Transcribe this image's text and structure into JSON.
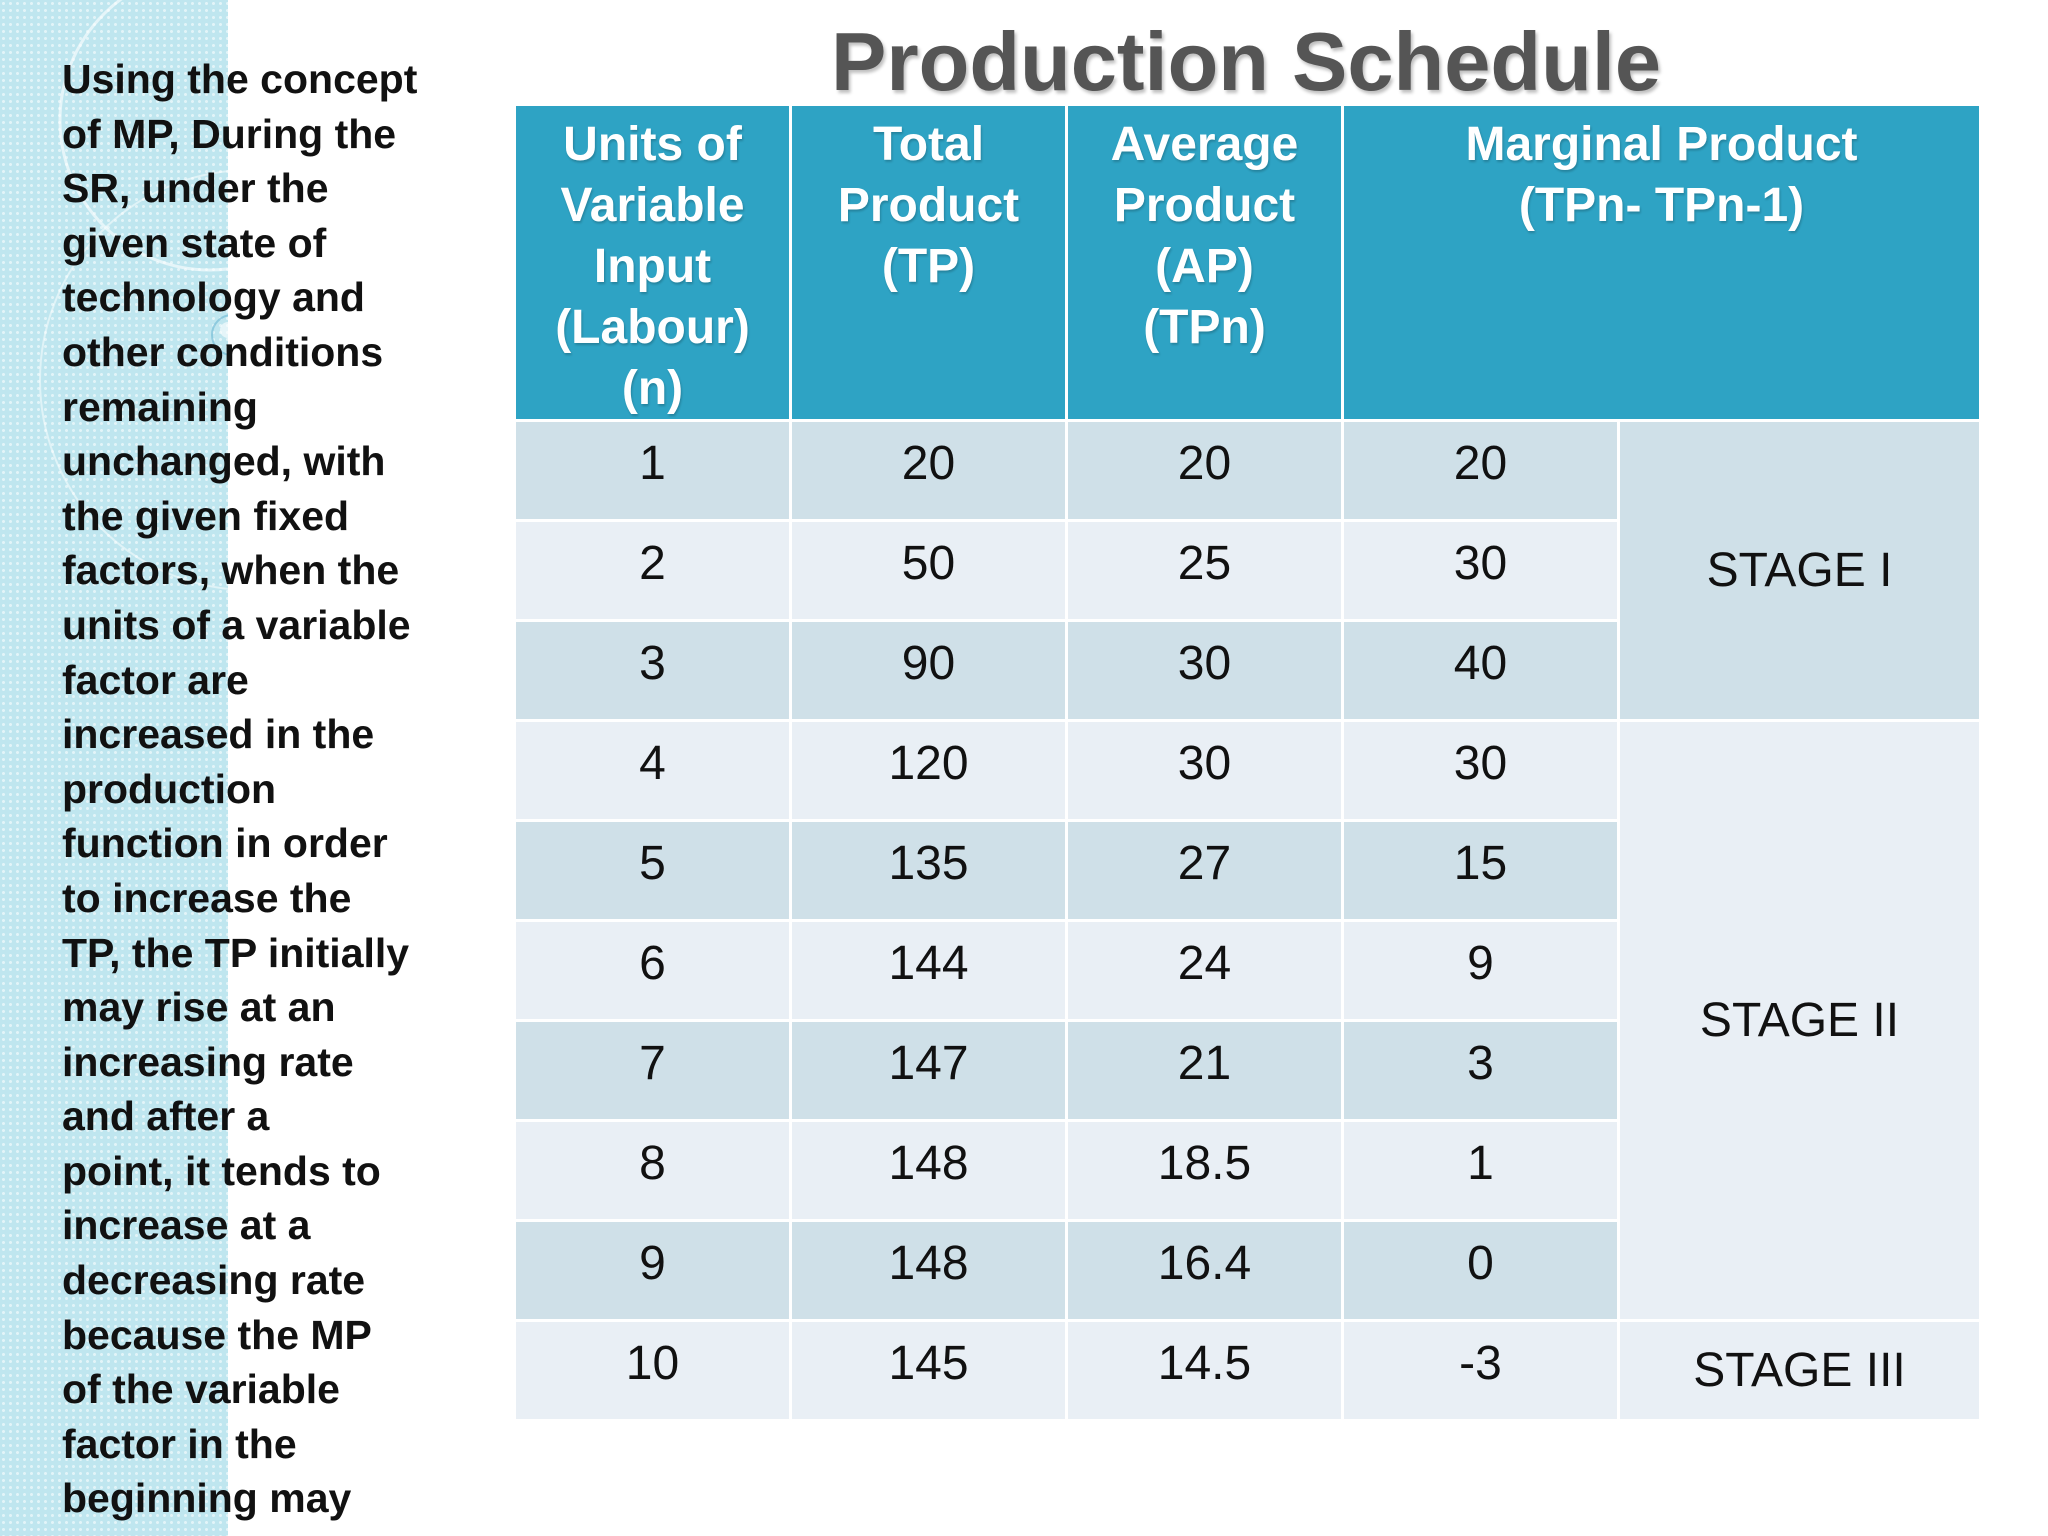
{
  "slide": {
    "title": "Production Schedule",
    "side_text_lines": [
      "Using the concept",
      "of MP, During the",
      "SR, under the",
      "given state of",
      "technology and",
      "other conditions",
      "remaining",
      "unchanged, with",
      "the given fixed",
      "factors, when the",
      "units of a variable",
      "factor are",
      "increased in the",
      "production",
      "function in order",
      "to increase the",
      "TP, the TP initially",
      "may rise at an",
      "increasing rate",
      "and after a",
      "point, it tends to",
      "increase at a",
      "decreasing rate",
      "because the MP",
      "of the variable",
      "factor in the",
      "beginning may"
    ]
  },
  "table": {
    "headers": {
      "units": [
        "Units of",
        "Variable",
        "Input",
        "(Labour)",
        "(n)"
      ],
      "tp": [
        "Total",
        "Product",
        "(TP)"
      ],
      "ap": [
        "Average",
        "Product",
        "(AP)",
        "(TPn)"
      ],
      "mp": [
        "Marginal Product",
        "(TPn- TPn-1)"
      ]
    },
    "rows": [
      {
        "n": "1",
        "tp": "20",
        "ap": "20",
        "mp": "20"
      },
      {
        "n": "2",
        "tp": "50",
        "ap": "25",
        "mp": "30"
      },
      {
        "n": "3",
        "tp": "90",
        "ap": "30",
        "mp": "40"
      },
      {
        "n": "4",
        "tp": "120",
        "ap": "30",
        "mp": "30"
      },
      {
        "n": "5",
        "tp": "135",
        "ap": "27",
        "mp": "15"
      },
      {
        "n": "6",
        "tp": "144",
        "ap": "24",
        "mp": "9"
      },
      {
        "n": "7",
        "tp": "147",
        "ap": "21",
        "mp": "3"
      },
      {
        "n": "8",
        "tp": "148",
        "ap": "18.5",
        "mp": "1"
      },
      {
        "n": "9",
        "tp": "148",
        "ap": "16.4",
        "mp": "0"
      },
      {
        "n": "10",
        "tp": "145",
        "ap": "14.5",
        "mp": "-3"
      }
    ],
    "stages": {
      "stage1": "STAGE I",
      "stage2": "STAGE II",
      "stage3": "STAGE III"
    }
  },
  "colors": {
    "header_bg": "#2ea3c4",
    "row_dark": "#cfe0e8",
    "row_light": "#e9eff5",
    "side_strip": "#bfe6ef",
    "title_text": "#555555"
  }
}
